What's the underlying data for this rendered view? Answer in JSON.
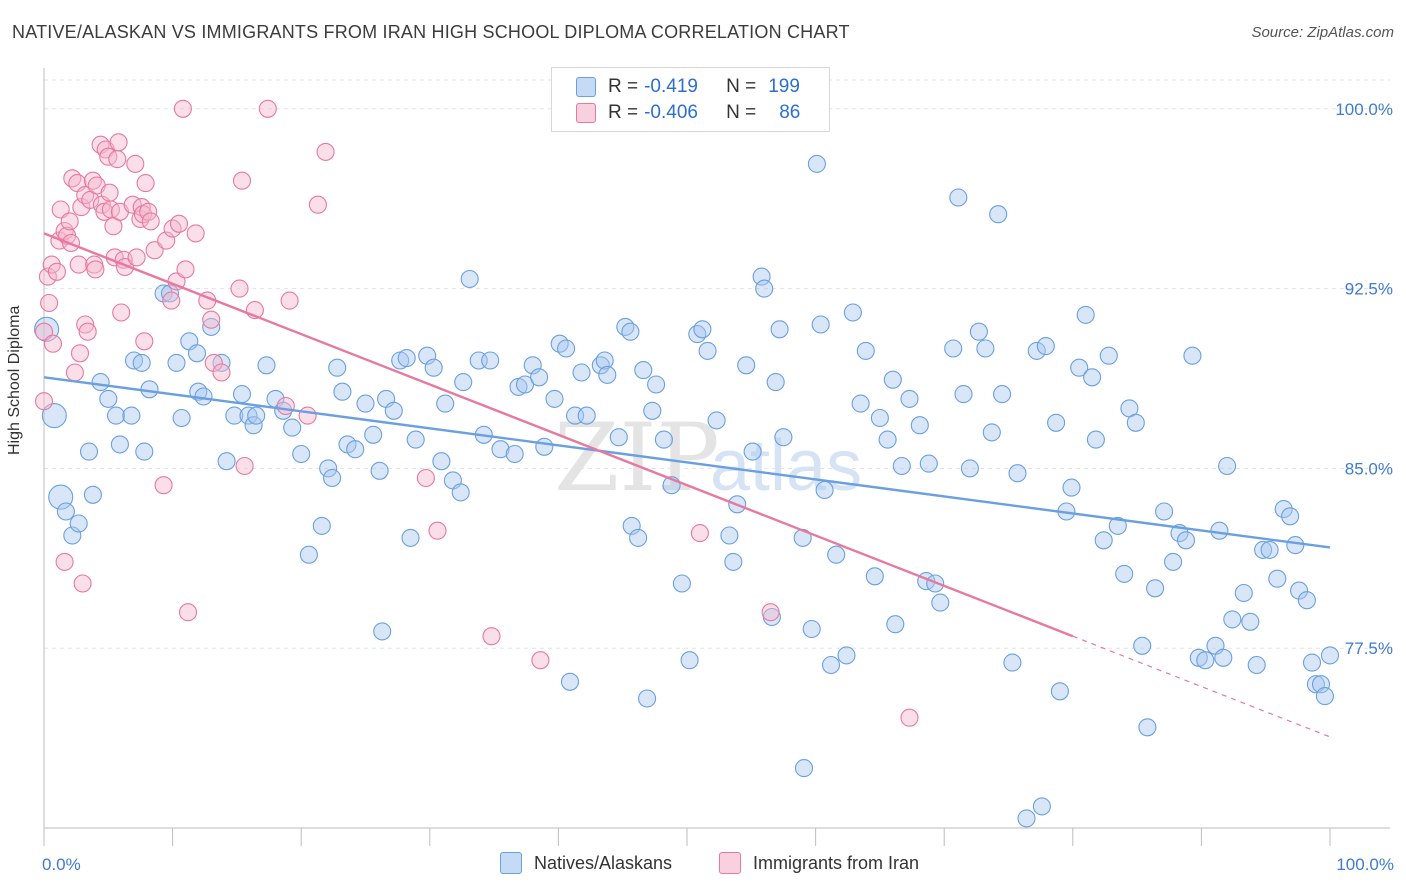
{
  "header": {
    "title": "NATIVE/ALASKAN VS IMMIGRANTS FROM IRAN HIGH SCHOOL DIPLOMA CORRELATION CHART",
    "source": "Source: ZipAtlas.com"
  },
  "watermark": {
    "zip": "ZIP",
    "atlas": "atlas"
  },
  "legend": {
    "rows": [
      {
        "r_key": "R =",
        "r_value": "-0.419",
        "n_key": "N =",
        "n_value": "199",
        "color": "#a9c8ef"
      },
      {
        "r_key": "R =",
        "r_value": "-0.406",
        "n_key": "N =",
        "n_value": "86",
        "color": "#f5b8cc"
      }
    ]
  },
  "bottom_legend": {
    "items": [
      {
        "label": "Natives/Alaskans",
        "color": "#a9c8ef"
      },
      {
        "label": "Immigrants from Iran",
        "color": "#f5b8cc"
      }
    ]
  },
  "chart_data": {
    "type": "scatter",
    "ylabel": "High School Diploma",
    "xlim": [
      0,
      100
    ],
    "ylim": [
      70.0,
      101.7
    ],
    "x_tick_labels": [
      {
        "value": 0,
        "label": "0.0%"
      },
      {
        "value": 100,
        "label": "100.0%"
      }
    ],
    "y_tick_labels": [
      {
        "value": 100.0,
        "label": "100.0%"
      },
      {
        "value": 92.5,
        "label": "92.5%"
      },
      {
        "value": 85.0,
        "label": "85.0%"
      },
      {
        "value": 77.5,
        "label": "77.5%"
      }
    ],
    "grid": true,
    "series": [
      {
        "name": "Natives/Alaskans",
        "color": "#6aa0e0",
        "fill": "#a9c8ef",
        "trend": {
          "x0": 0,
          "y0": 88.8,
          "x1": 100,
          "y1": 81.7,
          "dashed_from": null
        },
        "points": [
          [
            0.2,
            90.8
          ],
          [
            0.8,
            87.2
          ],
          [
            1.3,
            83.8
          ],
          [
            1.7,
            83.2
          ],
          [
            2.2,
            82.2
          ],
          [
            2.7,
            82.7
          ],
          [
            3.5,
            85.7
          ],
          [
            3.8,
            83.9
          ],
          [
            4.4,
            88.6
          ],
          [
            5.0,
            87.9
          ],
          [
            5.6,
            87.2
          ],
          [
            5.9,
            86.0
          ],
          [
            6.8,
            87.2
          ],
          [
            7.0,
            89.5
          ],
          [
            7.6,
            89.4
          ],
          [
            7.8,
            85.7
          ],
          [
            8.2,
            88.3
          ],
          [
            9.3,
            92.3
          ],
          [
            9.8,
            92.3
          ],
          [
            10.3,
            89.4
          ],
          [
            10.7,
            87.1
          ],
          [
            11.3,
            90.3
          ],
          [
            11.9,
            89.8
          ],
          [
            12.0,
            88.2
          ],
          [
            12.4,
            88.0
          ],
          [
            13.0,
            90.9
          ],
          [
            13.8,
            89.4
          ],
          [
            14.2,
            85.3
          ],
          [
            14.8,
            87.2
          ],
          [
            15.4,
            88.1
          ],
          [
            15.9,
            87.2
          ],
          [
            16.3,
            86.8
          ],
          [
            16.5,
            87.2
          ],
          [
            17.3,
            89.3
          ],
          [
            18.0,
            87.9
          ],
          [
            18.6,
            87.4
          ],
          [
            19.3,
            86.7
          ],
          [
            20.0,
            85.6
          ],
          [
            20.6,
            81.4
          ],
          [
            21.6,
            82.6
          ],
          [
            22.1,
            85.0
          ],
          [
            22.4,
            84.6
          ],
          [
            22.8,
            89.2
          ],
          [
            23.2,
            88.2
          ],
          [
            23.6,
            86.0
          ],
          [
            24.2,
            85.8
          ],
          [
            25.0,
            87.7
          ],
          [
            25.6,
            86.4
          ],
          [
            26.1,
            84.9
          ],
          [
            26.3,
            78.2
          ],
          [
            26.6,
            87.9
          ],
          [
            27.2,
            87.4
          ],
          [
            27.7,
            89.5
          ],
          [
            28.2,
            89.6
          ],
          [
            28.5,
            82.1
          ],
          [
            28.9,
            86.2
          ],
          [
            29.8,
            89.7
          ],
          [
            30.3,
            89.2
          ],
          [
            30.9,
            85.3
          ],
          [
            31.2,
            87.7
          ],
          [
            31.8,
            84.5
          ],
          [
            32.4,
            84.0
          ],
          [
            32.6,
            88.6
          ],
          [
            33.1,
            92.9
          ],
          [
            33.8,
            89.5
          ],
          [
            34.2,
            86.4
          ],
          [
            34.7,
            89.5
          ],
          [
            35.5,
            85.8
          ],
          [
            36.6,
            85.6
          ],
          [
            36.9,
            88.4
          ],
          [
            37.4,
            88.5
          ],
          [
            38.0,
            89.3
          ],
          [
            38.5,
            88.8
          ],
          [
            38.9,
            85.9
          ],
          [
            39.7,
            87.9
          ],
          [
            40.1,
            90.2
          ],
          [
            40.6,
            90.0
          ],
          [
            40.9,
            76.1
          ],
          [
            41.3,
            87.2
          ],
          [
            41.8,
            89.0
          ],
          [
            42.2,
            87.2
          ],
          [
            43.3,
            89.3
          ],
          [
            43.6,
            89.5
          ],
          [
            43.8,
            88.9
          ],
          [
            44.7,
            86.3
          ],
          [
            45.2,
            90.9
          ],
          [
            45.6,
            90.7
          ],
          [
            45.7,
            82.6
          ],
          [
            46.2,
            82.1
          ],
          [
            46.6,
            89.1
          ],
          [
            46.9,
            75.4
          ],
          [
            47.3,
            87.4
          ],
          [
            47.6,
            88.5
          ],
          [
            48.2,
            86.2
          ],
          [
            48.8,
            84.3
          ],
          [
            49.6,
            80.2
          ],
          [
            50.2,
            77.0
          ],
          [
            50.8,
            90.6
          ],
          [
            51.2,
            90.8
          ],
          [
            51.6,
            89.9
          ],
          [
            52.3,
            87.0
          ],
          [
            53.3,
            82.2
          ],
          [
            53.6,
            81.1
          ],
          [
            53.9,
            83.5
          ],
          [
            54.6,
            89.3
          ],
          [
            55.1,
            85.7
          ],
          [
            55.8,
            93.0
          ],
          [
            56.0,
            92.5
          ],
          [
            56.6,
            78.8
          ],
          [
            56.9,
            88.6
          ],
          [
            57.2,
            90.8
          ],
          [
            57.5,
            86.3
          ],
          [
            59.0,
            82.1
          ],
          [
            59.1,
            72.5
          ],
          [
            59.7,
            78.3
          ],
          [
            60.1,
            97.7
          ],
          [
            60.4,
            91.0
          ],
          [
            60.7,
            84.1
          ],
          [
            61.2,
            76.8
          ],
          [
            61.6,
            81.4
          ],
          [
            62.4,
            77.2
          ],
          [
            62.9,
            91.5
          ],
          [
            63.5,
            87.7
          ],
          [
            63.9,
            89.9
          ],
          [
            64.6,
            80.5
          ],
          [
            65.0,
            87.1
          ],
          [
            65.6,
            86.2
          ],
          [
            66.0,
            88.7
          ],
          [
            66.2,
            78.5
          ],
          [
            66.7,
            85.1
          ],
          [
            67.3,
            87.9
          ],
          [
            68.1,
            86.8
          ],
          [
            68.6,
            80.3
          ],
          [
            68.8,
            85.2
          ],
          [
            69.3,
            80.2
          ],
          [
            69.7,
            79.4
          ],
          [
            70.7,
            90.0
          ],
          [
            71.1,
            96.3
          ],
          [
            71.5,
            88.1
          ],
          [
            72.0,
            85.0
          ],
          [
            72.7,
            90.7
          ],
          [
            73.2,
            90.0
          ],
          [
            73.7,
            86.5
          ],
          [
            74.2,
            95.6
          ],
          [
            74.5,
            88.1
          ],
          [
            75.3,
            76.9
          ],
          [
            75.7,
            84.8
          ],
          [
            76.4,
            70.4
          ],
          [
            77.2,
            89.9
          ],
          [
            77.6,
            70.9
          ],
          [
            77.9,
            90.1
          ],
          [
            78.7,
            86.9
          ],
          [
            79.0,
            75.7
          ],
          [
            79.5,
            83.2
          ],
          [
            79.9,
            84.2
          ],
          [
            80.5,
            89.2
          ],
          [
            81.0,
            91.4
          ],
          [
            81.5,
            88.8
          ],
          [
            81.8,
            86.2
          ],
          [
            82.4,
            82.0
          ],
          [
            82.8,
            89.7
          ],
          [
            83.5,
            82.6
          ],
          [
            84.0,
            80.6
          ],
          [
            84.4,
            87.5
          ],
          [
            84.9,
            86.9
          ],
          [
            85.4,
            77.6
          ],
          [
            85.8,
            74.2
          ],
          [
            86.4,
            80.0
          ],
          [
            87.1,
            83.2
          ],
          [
            87.8,
            81.1
          ],
          [
            88.3,
            82.3
          ],
          [
            88.8,
            82.0
          ],
          [
            89.3,
            89.7
          ],
          [
            89.8,
            77.1
          ],
          [
            90.3,
            77.0
          ],
          [
            91.1,
            77.6
          ],
          [
            91.4,
            82.4
          ],
          [
            91.7,
            77.1
          ],
          [
            92.0,
            85.1
          ],
          [
            92.4,
            78.7
          ],
          [
            93.3,
            79.8
          ],
          [
            93.8,
            78.6
          ],
          [
            94.3,
            76.8
          ],
          [
            94.8,
            81.6
          ],
          [
            95.3,
            81.6
          ],
          [
            95.9,
            80.4
          ],
          [
            96.4,
            83.3
          ],
          [
            96.9,
            83.0
          ],
          [
            97.3,
            81.8
          ],
          [
            97.6,
            79.9
          ],
          [
            98.2,
            79.5
          ],
          [
            98.6,
            76.9
          ],
          [
            98.9,
            76.0
          ],
          [
            99.3,
            76.0
          ],
          [
            99.6,
            75.5
          ],
          [
            100.0,
            77.2
          ]
        ],
        "large_points": [
          [
            0.2,
            90.8
          ],
          [
            0.8,
            87.2
          ],
          [
            1.3,
            83.8
          ]
        ]
      },
      {
        "name": "Immigrants from Iran",
        "color": "#e8799e",
        "fill": "#f5b8cc",
        "trend": {
          "x0": 0,
          "y0": 94.8,
          "x1": 100,
          "y1": 73.8,
          "dashed_from": 80
        },
        "points": [
          [
            0.0,
            90.7
          ],
          [
            0.0,
            87.8
          ],
          [
            0.3,
            93.0
          ],
          [
            0.4,
            91.9
          ],
          [
            0.6,
            93.5
          ],
          [
            0.7,
            90.2
          ],
          [
            1.0,
            93.2
          ],
          [
            1.2,
            94.5
          ],
          [
            1.3,
            95.8
          ],
          [
            1.6,
            94.9
          ],
          [
            1.6,
            81.1
          ],
          [
            1.8,
            94.7
          ],
          [
            2.0,
            95.3
          ],
          [
            2.1,
            94.4
          ],
          [
            2.2,
            97.1
          ],
          [
            2.4,
            89.0
          ],
          [
            2.6,
            96.9
          ],
          [
            2.7,
            93.5
          ],
          [
            2.8,
            89.8
          ],
          [
            2.9,
            95.9
          ],
          [
            3.0,
            80.2
          ],
          [
            3.2,
            91.0
          ],
          [
            3.2,
            96.4
          ],
          [
            3.4,
            90.7
          ],
          [
            3.6,
            96.2
          ],
          [
            3.8,
            97.0
          ],
          [
            3.9,
            93.5
          ],
          [
            4.0,
            93.3
          ],
          [
            4.1,
            96.8
          ],
          [
            4.4,
            98.5
          ],
          [
            4.5,
            96.0
          ],
          [
            4.7,
            95.7
          ],
          [
            4.8,
            98.3
          ],
          [
            5.0,
            98.0
          ],
          [
            5.1,
            96.5
          ],
          [
            5.2,
            95.8
          ],
          [
            5.4,
            95.1
          ],
          [
            5.5,
            93.8
          ],
          [
            5.7,
            97.9
          ],
          [
            5.8,
            98.6
          ],
          [
            5.9,
            95.7
          ],
          [
            6.0,
            91.5
          ],
          [
            6.2,
            93.7
          ],
          [
            6.3,
            93.4
          ],
          [
            6.9,
            96.0
          ],
          [
            7.1,
            97.7
          ],
          [
            7.2,
            93.8
          ],
          [
            7.5,
            95.4
          ],
          [
            7.6,
            95.9
          ],
          [
            7.7,
            95.6
          ],
          [
            7.8,
            90.3
          ],
          [
            7.9,
            96.9
          ],
          [
            8.1,
            95.7
          ],
          [
            8.3,
            95.3
          ],
          [
            8.6,
            94.1
          ],
          [
            9.3,
            84.3
          ],
          [
            9.5,
            94.5
          ],
          [
            9.9,
            92.0
          ],
          [
            10.0,
            95.0
          ],
          [
            10.3,
            92.8
          ],
          [
            10.5,
            95.2
          ],
          [
            10.8,
            100.0
          ],
          [
            11.0,
            93.3
          ],
          [
            11.2,
            79.0
          ],
          [
            11.8,
            94.8
          ],
          [
            12.7,
            92.0
          ],
          [
            13.0,
            91.2
          ],
          [
            13.2,
            89.4
          ],
          [
            13.8,
            89.0
          ],
          [
            15.2,
            92.5
          ],
          [
            15.4,
            97.0
          ],
          [
            15.6,
            85.1
          ],
          [
            16.4,
            91.6
          ],
          [
            17.4,
            100.0
          ],
          [
            18.8,
            87.6
          ],
          [
            19.1,
            92.0
          ],
          [
            20.5,
            87.2
          ],
          [
            21.3,
            96.0
          ],
          [
            21.9,
            98.2
          ],
          [
            29.7,
            84.6
          ],
          [
            30.6,
            82.4
          ],
          [
            34.8,
            78.0
          ],
          [
            38.6,
            77.0
          ],
          [
            51.0,
            82.3
          ],
          [
            56.5,
            79.0
          ],
          [
            67.3,
            74.6
          ]
        ],
        "large_points": [
          [
            0.2,
            90.7
          ],
          [
            0.2,
            87.8
          ]
        ]
      }
    ]
  }
}
